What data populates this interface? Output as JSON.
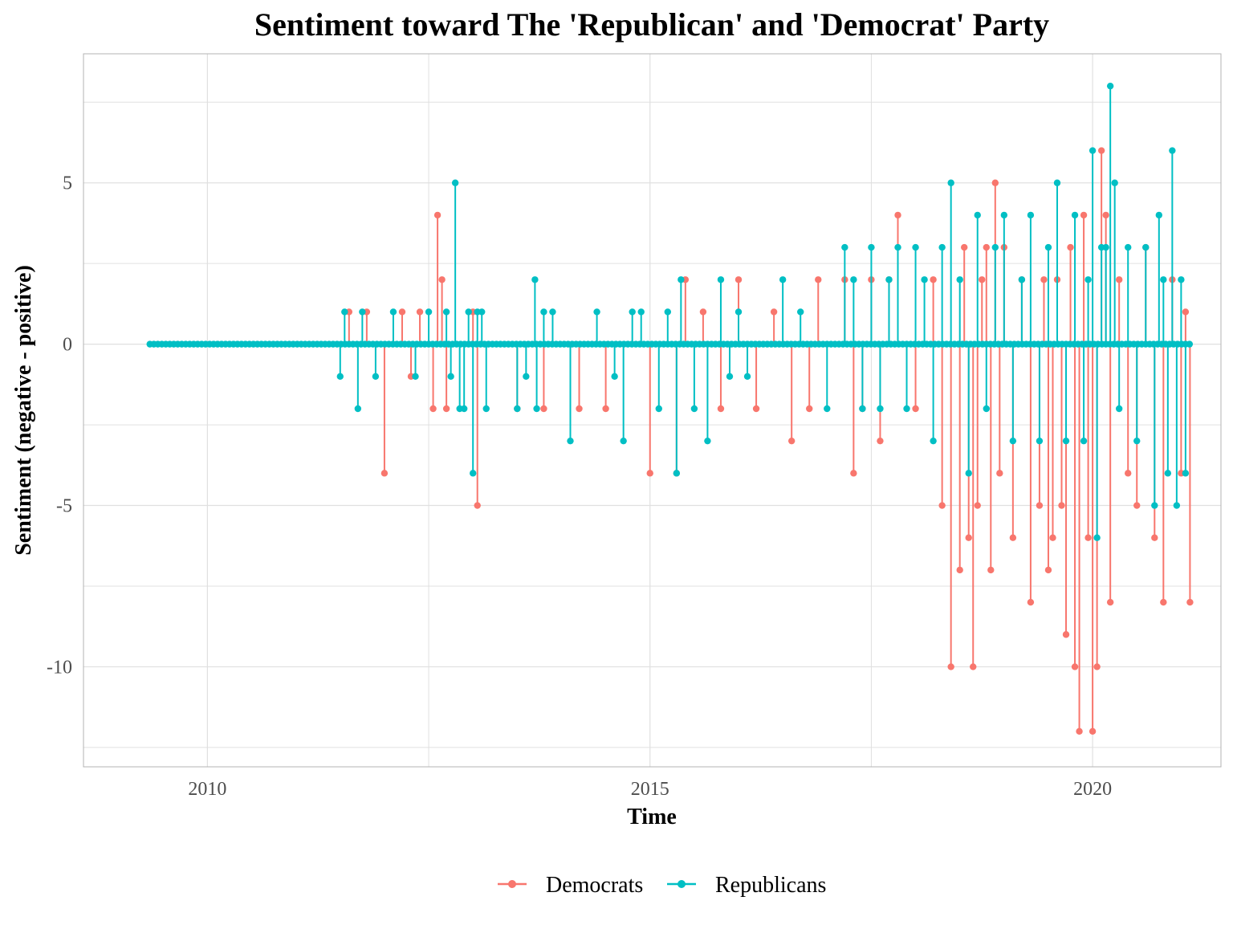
{
  "chart_data": {
    "type": "line",
    "title": "Sentiment toward The 'Republican' and 'Democrat' Party",
    "xlabel": "Time",
    "ylabel": "Sentiment (negative - positive)",
    "xlim": [
      2008.6,
      2021.45
    ],
    "ylim": [
      -13.1,
      9.0
    ],
    "x_ticks": [
      2010,
      2015,
      2020
    ],
    "x_tick_labels": [
      "2010",
      "2015",
      "2020"
    ],
    "y_ticks": [
      5,
      0,
      -5,
      -10
    ],
    "y_tick_labels": [
      "5",
      "0",
      "-5",
      "-10"
    ],
    "grid": true,
    "legend_position": "bottom",
    "colors": {
      "Democrats": "#F8766D",
      "Republicans": "#00BFC4",
      "grid": "#e0e0e0",
      "panel_border": "#b3b3b3"
    },
    "zero_baseline": {
      "start": 2009.35,
      "end": 2011.55
    },
    "series": [
      {
        "name": "Democrats",
        "x": [
          2011.6,
          2011.8,
          2012.0,
          2012.2,
          2012.3,
          2012.4,
          2012.55,
          2012.6,
          2012.65,
          2012.7,
          2013.0,
          2013.05,
          2013.5,
          2013.8,
          2014.2,
          2014.5,
          2015.0,
          2015.3,
          2015.4,
          2015.6,
          2015.8,
          2016.0,
          2016.2,
          2016.4,
          2016.6,
          2016.8,
          2016.9,
          2017.2,
          2017.3,
          2017.4,
          2017.5,
          2017.6,
          2017.7,
          2017.8,
          2018.0,
          2018.2,
          2018.3,
          2018.4,
          2018.5,
          2018.55,
          2018.6,
          2018.65,
          2018.7,
          2018.75,
          2018.8,
          2018.85,
          2018.9,
          2018.95,
          2019.0,
          2019.1,
          2019.2,
          2019.3,
          2019.4,
          2019.45,
          2019.5,
          2019.55,
          2019.6,
          2019.65,
          2019.7,
          2019.75,
          2019.8,
          2019.85,
          2019.9,
          2019.95,
          2020.0,
          2020.05,
          2020.1,
          2020.15,
          2020.2,
          2020.3,
          2020.4,
          2020.5,
          2020.6,
          2020.7,
          2020.8,
          2020.9,
          2021.0,
          2021.05,
          2021.1
        ],
        "y": [
          1,
          1,
          -4,
          1,
          -1,
          1,
          -2,
          4,
          2,
          -2,
          1,
          -5,
          -2,
          -2,
          -2,
          -2,
          -4,
          -4,
          2,
          1,
          -2,
          2,
          -2,
          1,
          -3,
          -2,
          2,
          2,
          -4,
          -2,
          2,
          -3,
          2,
          4,
          -2,
          2,
          -5,
          -10,
          -7,
          3,
          -6,
          -10,
          -5,
          2,
          3,
          -7,
          5,
          -4,
          3,
          -6,
          2,
          -8,
          -5,
          2,
          -7,
          -6,
          2,
          -5,
          -9,
          3,
          -10,
          -12,
          4,
          -6,
          -12,
          -10,
          6,
          4,
          -8,
          2,
          -4,
          -5,
          3,
          -6,
          -8,
          2,
          -4,
          1,
          -8
        ]
      },
      {
        "name": "Republicans",
        "x": [
          2011.5,
          2011.55,
          2011.7,
          2011.75,
          2011.9,
          2012.1,
          2012.35,
          2012.5,
          2012.7,
          2012.75,
          2012.8,
          2012.85,
          2012.9,
          2012.95,
          2013.0,
          2013.05,
          2013.1,
          2013.15,
          2013.5,
          2013.6,
          2013.7,
          2013.72,
          2013.8,
          2013.9,
          2014.1,
          2014.4,
          2014.6,
          2014.7,
          2014.8,
          2014.9,
          2015.1,
          2015.2,
          2015.3,
          2015.35,
          2015.5,
          2015.65,
          2015.8,
          2015.9,
          2016.0,
          2016.1,
          2016.5,
          2016.7,
          2017.0,
          2017.2,
          2017.3,
          2017.4,
          2017.5,
          2017.6,
          2017.7,
          2017.8,
          2017.9,
          2018.0,
          2018.1,
          2018.2,
          2018.3,
          2018.4,
          2018.5,
          2018.6,
          2018.7,
          2018.8,
          2018.9,
          2019.0,
          2019.1,
          2019.2,
          2019.3,
          2019.4,
          2019.5,
          2019.6,
          2019.7,
          2019.8,
          2019.9,
          2019.95,
          2020.0,
          2020.05,
          2020.1,
          2020.15,
          2020.2,
          2020.25,
          2020.3,
          2020.4,
          2020.5,
          2020.6,
          2020.7,
          2020.75,
          2020.8,
          2020.85,
          2020.9,
          2020.95,
          2021.0,
          2021.05
        ],
        "y": [
          -1,
          1,
          -2,
          1,
          -1,
          1,
          -1,
          1,
          1,
          -1,
          5,
          -2,
          -2,
          1,
          -4,
          1,
          1,
          -2,
          -2,
          -1,
          2,
          -2,
          1,
          1,
          -3,
          1,
          -1,
          -3,
          1,
          1,
          -2,
          1,
          -4,
          2,
          -2,
          -3,
          2,
          -1,
          1,
          -1,
          2,
          1,
          -2,
          3,
          2,
          -2,
          3,
          -2,
          2,
          3,
          -2,
          3,
          2,
          -3,
          3,
          5,
          2,
          -4,
          4,
          -2,
          3,
          4,
          -3,
          2,
          4,
          -3,
          3,
          5,
          -3,
          4,
          -3,
          2,
          6,
          -6,
          3,
          3,
          8,
          5,
          -2,
          3,
          -3,
          3,
          -5,
          4,
          2,
          -4,
          6,
          -5,
          2,
          -4
        ]
      }
    ]
  }
}
